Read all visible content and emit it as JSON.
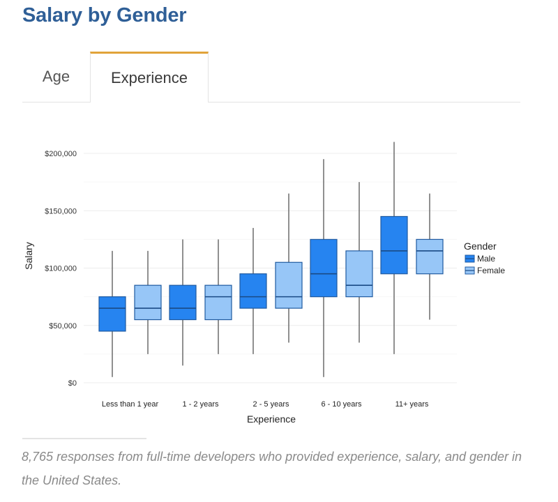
{
  "header": {
    "title": "Salary by Gender"
  },
  "tabs": [
    {
      "label": "Age",
      "active": false
    },
    {
      "label": "Experience",
      "active": true
    }
  ],
  "accent_color": "#e1a33a",
  "chart_data": {
    "type": "box",
    "title": "",
    "xlabel": "Experience",
    "ylabel": "Salary",
    "ylim": [
      0,
      215000
    ],
    "yticks": [
      0,
      50000,
      100000,
      150000,
      200000
    ],
    "ytick_labels": [
      "$0",
      "$50,000",
      "$100,000",
      "$150,000",
      "$200,000"
    ],
    "categories": [
      "Less than 1 year",
      "1 - 2 years",
      "2 - 5 years",
      "6 - 10 years",
      "11+ years"
    ],
    "grid": true,
    "legend": {
      "title": "Gender",
      "placement": "right",
      "entries": [
        "Male",
        "Female"
      ]
    },
    "series": [
      {
        "name": "Male",
        "color": "#2684f0",
        "boxes": [
          {
            "whisker_low": 5000,
            "q1": 45000,
            "median": 65000,
            "q3": 75000,
            "whisker_high": 115000
          },
          {
            "whisker_low": 15000,
            "q1": 55000,
            "median": 65000,
            "q3": 85000,
            "whisker_high": 125000
          },
          {
            "whisker_low": 25000,
            "q1": 65000,
            "median": 75000,
            "q3": 95000,
            "whisker_high": 135000
          },
          {
            "whisker_low": 5000,
            "q1": 75000,
            "median": 95000,
            "q3": 125000,
            "whisker_high": 195000
          },
          {
            "whisker_low": 25000,
            "q1": 95000,
            "median": 115000,
            "q3": 145000,
            "whisker_high": 210000
          }
        ]
      },
      {
        "name": "Female",
        "color": "#97c6f7",
        "boxes": [
          {
            "whisker_low": 25000,
            "q1": 55000,
            "median": 65000,
            "q3": 85000,
            "whisker_high": 115000
          },
          {
            "whisker_low": 25000,
            "q1": 55000,
            "median": 75000,
            "q3": 85000,
            "whisker_high": 125000
          },
          {
            "whisker_low": 35000,
            "q1": 65000,
            "median": 75000,
            "q3": 105000,
            "whisker_high": 165000
          },
          {
            "whisker_low": 35000,
            "q1": 75000,
            "median": 85000,
            "q3": 115000,
            "whisker_high": 175000
          },
          {
            "whisker_low": 55000,
            "q1": 95000,
            "median": 115000,
            "q3": 125000,
            "whisker_high": 165000
          }
        ]
      }
    ]
  },
  "caption": "8,765 responses from full-time developers who provided experience, salary, and gender in the United States."
}
